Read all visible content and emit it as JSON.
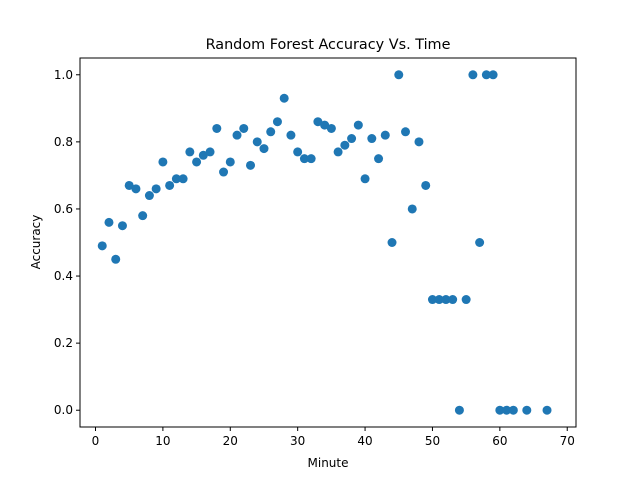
{
  "chart_data": {
    "type": "scatter",
    "title": "Random Forest Accuracy Vs. Time",
    "xlabel": "Minute",
    "ylabel": "Accuracy",
    "xlim": [
      -2.3,
      71.3
    ],
    "ylim": [
      -0.05,
      1.05
    ],
    "xticks": [
      0,
      10,
      20,
      30,
      40,
      50,
      60,
      70
    ],
    "xtick_labels": [
      "0",
      "10",
      "20",
      "30",
      "40",
      "50",
      "60",
      "70"
    ],
    "yticks": [
      0.0,
      0.2,
      0.4,
      0.6,
      0.8,
      1.0
    ],
    "ytick_labels": [
      "0.0",
      "0.2",
      "0.4",
      "0.6",
      "0.8",
      "1.0"
    ],
    "grid": false,
    "color": "#1f77b4",
    "series": [
      {
        "x": [
          1,
          2,
          3,
          4,
          5,
          6,
          7,
          8,
          9,
          10,
          11,
          12,
          13,
          14,
          15,
          16,
          17,
          18,
          19,
          20,
          21,
          22,
          23,
          24,
          25,
          26,
          27,
          28,
          29,
          30,
          31,
          32,
          33,
          34,
          35,
          36,
          37,
          38,
          39,
          40,
          41,
          42,
          43,
          44,
          45,
          46,
          47,
          48,
          49,
          50,
          51,
          52,
          53,
          54,
          55,
          56,
          57,
          58,
          59,
          60,
          61,
          62,
          64,
          67
        ],
        "y": [
          0.49,
          0.56,
          0.45,
          0.55,
          0.67,
          0.66,
          0.58,
          0.64,
          0.66,
          0.74,
          0.67,
          0.69,
          0.69,
          0.77,
          0.74,
          0.76,
          0.77,
          0.84,
          0.71,
          0.74,
          0.82,
          0.84,
          0.73,
          0.8,
          0.78,
          0.83,
          0.86,
          0.93,
          0.82,
          0.77,
          0.75,
          0.75,
          0.86,
          0.85,
          0.84,
          0.77,
          0.79,
          0.81,
          0.85,
          0.69,
          0.81,
          0.75,
          0.82,
          0.5,
          1.0,
          0.83,
          0.6,
          0.8,
          0.67,
          0.33,
          0.33,
          0.33,
          0.33,
          0.0,
          0.33,
          1.0,
          0.5,
          1.0,
          1.0,
          0.0,
          0.0,
          0.0,
          0.0,
          0.0
        ]
      }
    ]
  }
}
